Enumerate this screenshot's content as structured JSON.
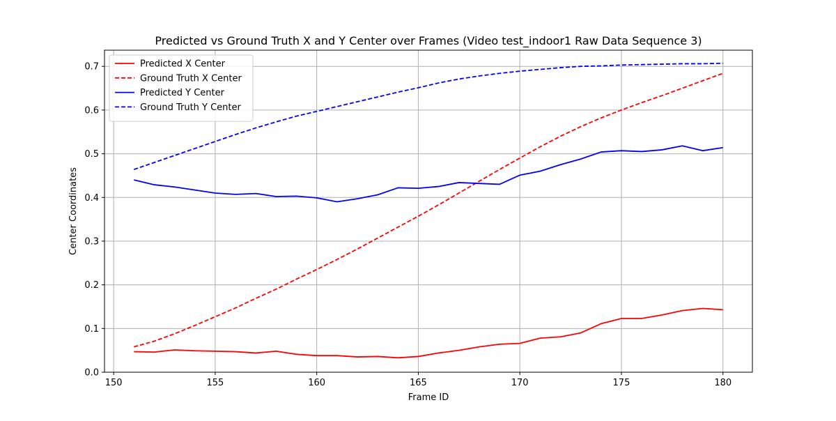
{
  "chart_data": {
    "type": "line",
    "title": "Predicted vs Ground Truth X and Y Center over Frames (Video test_indoor1 Raw Data Sequence 3)",
    "xlabel": "Frame ID",
    "ylabel": "Center Coordinates",
    "xlim": [
      149.55,
      181.45
    ],
    "ylim": [
      0.0,
      0.737
    ],
    "x_ticks": [
      150,
      155,
      160,
      165,
      170,
      175,
      180
    ],
    "y_ticks": [
      0.0,
      0.1,
      0.2,
      0.3,
      0.4,
      0.5,
      0.6,
      0.7
    ],
    "x_tick_labels": [
      "150",
      "155",
      "160",
      "165",
      "170",
      "175",
      "180"
    ],
    "y_tick_labels": [
      "0.0",
      "0.1",
      "0.2",
      "0.3",
      "0.4",
      "0.5",
      "0.6",
      "0.7"
    ],
    "grid": true,
    "legend_position": "top-left",
    "x": [
      151,
      152,
      153,
      154,
      155,
      156,
      157,
      158,
      159,
      160,
      161,
      162,
      163,
      164,
      165,
      166,
      167,
      168,
      169,
      170,
      171,
      172,
      173,
      174,
      175,
      176,
      177,
      178,
      179,
      180
    ],
    "series": [
      {
        "name": "Predicted X Center",
        "color": "#ff0000",
        "style": "solid",
        "values": [
          0.047,
          0.046,
          0.051,
          0.049,
          0.048,
          0.047,
          0.044,
          0.048,
          0.041,
          0.038,
          0.038,
          0.035,
          0.036,
          0.033,
          0.036,
          0.044,
          0.05,
          0.058,
          0.064,
          0.066,
          0.078,
          0.081,
          0.09,
          0.111,
          0.123,
          0.123,
          0.131,
          0.141,
          0.146,
          0.143
        ]
      },
      {
        "name": "Ground Truth X Center",
        "color": "#ff0000",
        "style": "dashed",
        "values": [
          0.058,
          0.071,
          0.088,
          0.107,
          0.127,
          0.147,
          0.169,
          0.19,
          0.213,
          0.235,
          0.258,
          0.282,
          0.307,
          0.332,
          0.357,
          0.383,
          0.41,
          0.437,
          0.464,
          0.49,
          0.516,
          0.54,
          0.562,
          0.582,
          0.6,
          0.617,
          0.633,
          0.65,
          0.667,
          0.684
        ]
      },
      {
        "name": "Predicted Y Center",
        "color": "#0000ff",
        "style": "solid",
        "values": [
          0.44,
          0.429,
          0.424,
          0.417,
          0.41,
          0.407,
          0.409,
          0.402,
          0.403,
          0.399,
          0.39,
          0.397,
          0.406,
          0.422,
          0.421,
          0.425,
          0.434,
          0.432,
          0.43,
          0.451,
          0.46,
          0.475,
          0.488,
          0.504,
          0.507,
          0.505,
          0.509,
          0.518,
          0.507,
          0.514
        ]
      },
      {
        "name": "Ground Truth Y Center",
        "color": "#0000ff",
        "style": "dashed",
        "values": [
          0.464,
          0.48,
          0.496,
          0.512,
          0.528,
          0.544,
          0.559,
          0.573,
          0.586,
          0.597,
          0.608,
          0.619,
          0.63,
          0.641,
          0.651,
          0.662,
          0.671,
          0.678,
          0.684,
          0.689,
          0.693,
          0.697,
          0.7,
          0.701,
          0.703,
          0.704,
          0.705,
          0.706,
          0.706,
          0.707
        ]
      }
    ]
  }
}
